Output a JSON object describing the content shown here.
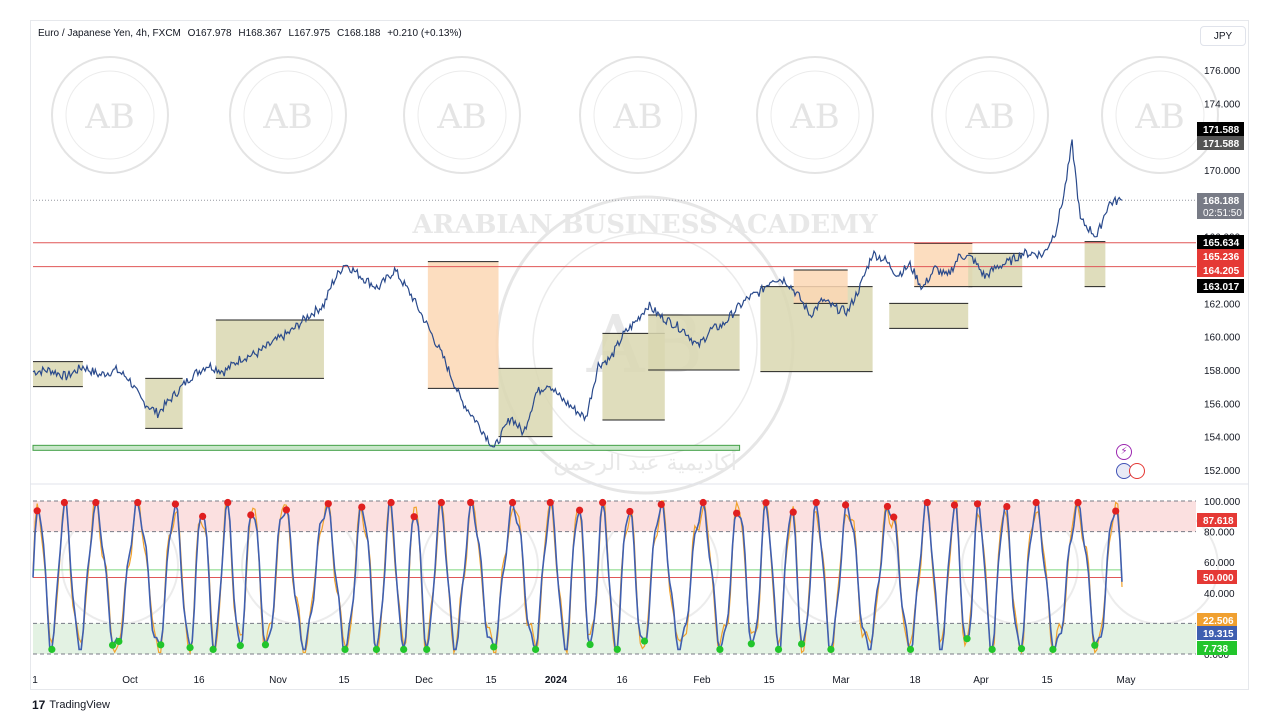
{
  "header": {
    "symbol": "Euro / Japanese Yen, 4h, FXCM",
    "open": "O167.978",
    "high": "H168.367",
    "low": "L167.975",
    "close": "C168.188",
    "change": "+0.210 (+0.13%)"
  },
  "currency_button": "JPY",
  "branding": "TradingView",
  "watermark": {
    "name": "ARABIAN BUSINESS ACADEMY",
    "initials": "AB",
    "arabic": "أكاديمية عبد الرحمن"
  },
  "colors": {
    "price_line": "#2a4a8c",
    "line_red": "#e05757",
    "support_green": "#43a047",
    "range_fill_olive": "#d9d7b0",
    "range_fill_peach": "#fbd7b4",
    "stoch_k": "#f2a22c",
    "stoch_d": "#3f5fb0",
    "overbought_zone": "#fbe0e0",
    "oversold_zone": "#e3f2e3",
    "dot_red": "#e01f1f",
    "dot_green": "#22c52c"
  },
  "chart_data": [
    {
      "type": "line",
      "title": "Euro / Japanese Yen, 4h, FXCM",
      "ylim": [
        151.0,
        177.0
      ],
      "y_ticks": [
        "176.000",
        "174.000",
        "172.000",
        "170.000",
        "168.000",
        "166.000",
        "164.000",
        "162.000",
        "160.000",
        "158.000",
        "156.000",
        "154.000",
        "152.000"
      ],
      "x_ticks": [
        "1",
        "Oct",
        "16",
        "Nov",
        "15",
        "Dec",
        "15",
        "2024",
        "16",
        "Feb",
        "15",
        "Mar",
        "18",
        "Apr",
        "15",
        "May"
      ],
      "anchors_x": [
        0,
        4,
        8,
        12,
        16,
        20,
        23,
        26,
        30,
        34,
        38,
        42,
        46,
        50,
        54,
        58,
        62,
        66,
        70,
        72,
        75,
        79,
        83,
        87,
        91,
        95,
        99,
        103,
        107,
        111,
        115,
        118,
        121,
        124,
        127,
        130,
        133,
        136,
        139,
        142,
        145,
        148,
        151,
        154,
        157,
        160,
        163,
        166,
        169,
        172,
        175,
        178,
        181,
        184,
        187,
        190,
        193,
        196,
        199,
        202,
        205,
        208,
        211,
        214,
        217,
        220,
        223,
        226,
        229,
        232,
        235,
        238,
        241,
        243,
        246,
        248,
        250,
        252,
        254,
        256,
        258,
        259,
        260,
        262
      ],
      "anchors_y": [
        157.9,
        158.0,
        157.6,
        158.2,
        157.7,
        158.0,
        157.5,
        156.2,
        155.4,
        156.5,
        157.6,
        158.3,
        157.9,
        158.7,
        159.0,
        159.7,
        160.3,
        161.2,
        161.9,
        163.2,
        164.4,
        163.6,
        162.9,
        164.0,
        162.5,
        160.6,
        158.6,
        156.2,
        154.8,
        153.3,
        155.2,
        154.2,
        156.6,
        157.2,
        156.3,
        155.7,
        155.1,
        158.3,
        158.7,
        160.1,
        160.9,
        161.9,
        161.2,
        160.8,
        160.3,
        159.4,
        160.4,
        160.7,
        161.6,
        162.3,
        162.7,
        163.5,
        163.4,
        162.5,
        161.3,
        162.2,
        161.7,
        161.5,
        163.0,
        165.0,
        164.6,
        163.7,
        164.3,
        162.9,
        164.1,
        163.6,
        164.9,
        164.7,
        163.6,
        164.2,
        164.5,
        165.0,
        165.0,
        164.9,
        166.3,
        168.5,
        171.6,
        167.0,
        166.5,
        166.0,
        167.5,
        168.0,
        168.1,
        168.19
      ],
      "x_total_candles": 262,
      "levels": [
        {
          "name": "Resistance",
          "value": 165.634,
          "color": "#e05757"
        },
        {
          "name": "Support",
          "value": 164.205,
          "color": "#e05757"
        }
      ],
      "green_support": 153.3,
      "last_price": 168.188,
      "countdown": "02:51:50",
      "price_labels": [
        {
          "value": 171.588,
          "text": "171.588",
          "bg": "#000000"
        },
        {
          "value": 171.588,
          "text": "171.588",
          "bg": "#555555"
        },
        {
          "value": 168.188,
          "text": "168.188",
          "bg": "#787b86"
        },
        {
          "value": 165.634,
          "text": "165.634",
          "bg": "#000000"
        },
        {
          "value": 165.236,
          "text": "165.236",
          "bg": "#e53935"
        },
        {
          "value": 164.205,
          "text": "164.205",
          "bg": "#e53935"
        },
        {
          "value": 163.017,
          "text": "163.017",
          "bg": "#000000"
        }
      ],
      "ranges": [
        {
          "x0": 0,
          "x1": 12,
          "top": 158.5,
          "bot": 157.0,
          "fill": "olive"
        },
        {
          "x0": 27,
          "x1": 36,
          "top": 157.5,
          "bot": 154.5,
          "fill": "olive"
        },
        {
          "x0": 44,
          "x1": 70,
          "top": 161.0,
          "bot": 157.5,
          "fill": "olive"
        },
        {
          "x0": 95,
          "x1": 112,
          "top": 164.5,
          "bot": 156.9,
          "fill": "peach"
        },
        {
          "x0": 112,
          "x1": 125,
          "top": 158.1,
          "bot": 154.0,
          "fill": "olive"
        },
        {
          "x0": 137,
          "x1": 152,
          "top": 160.2,
          "bot": 155.0,
          "fill": "olive"
        },
        {
          "x0": 148,
          "x1": 170,
          "top": 161.3,
          "bot": 158.0,
          "fill": "olive"
        },
        {
          "x0": 175,
          "x1": 202,
          "top": 163.0,
          "bot": 157.9,
          "fill": "olive"
        },
        {
          "x0": 183,
          "x1": 196,
          "top": 164.0,
          "bot": 162.0,
          "fill": "peach"
        },
        {
          "x0": 206,
          "x1": 225,
          "top": 162.0,
          "bot": 160.5,
          "fill": "olive"
        },
        {
          "x0": 212,
          "x1": 226,
          "top": 165.6,
          "bot": 163.0,
          "fill": "peach"
        },
        {
          "x0": 225,
          "x1": 238,
          "top": 165.0,
          "bot": 163.0,
          "fill": "olive"
        },
        {
          "x0": 253,
          "x1": 258,
          "top": 165.7,
          "bot": 163.0,
          "fill": "olive"
        }
      ]
    },
    {
      "type": "line",
      "title": "Stochastic",
      "ylim": [
        0,
        100
      ],
      "y_ticks": [
        "100.000",
        "80.000",
        "60.000",
        "40.000",
        "20.000",
        "0.000"
      ],
      "overbought": 80,
      "middle": 50,
      "oversold": 20,
      "k_last": 22.506,
      "d_last": 19.315,
      "labels": [
        {
          "value": 87.618,
          "text": "87.618",
          "bg": "#e53935"
        },
        {
          "value": 50.0,
          "text": "50.000",
          "bg": "#e53935"
        },
        {
          "value": 22.506,
          "text": "22.506",
          "bg": "#f0a030"
        },
        {
          "value": 19.315,
          "text": "19.315",
          "bg": "#3f5fb0"
        },
        {
          "value": 7.738,
          "text": "7.738",
          "bg": "#22c52c"
        }
      ]
    }
  ]
}
